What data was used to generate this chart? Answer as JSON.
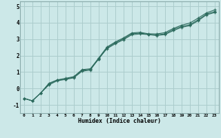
{
  "xlabel": "Humidex (Indice chaleur)",
  "background_color": "#cce8e8",
  "line_color": "#2d6b5e",
  "grid_color": "#aacccc",
  "xlim": [
    -0.5,
    23.5
  ],
  "ylim": [
    -1.5,
    5.3
  ],
  "xticks": [
    0,
    1,
    2,
    3,
    4,
    5,
    6,
    7,
    8,
    9,
    10,
    11,
    12,
    13,
    14,
    15,
    16,
    17,
    18,
    19,
    20,
    21,
    22,
    23
  ],
  "yticks": [
    -1,
    0,
    1,
    2,
    3,
    4,
    5
  ],
  "line1_x": [
    0,
    1,
    2,
    3,
    4,
    5,
    6,
    7,
    8,
    9,
    10,
    11,
    12,
    13,
    14,
    15,
    16,
    17,
    18,
    19,
    20,
    21,
    22,
    23
  ],
  "line1_y": [
    -0.6,
    -0.75,
    -0.28,
    0.22,
    0.47,
    0.55,
    0.65,
    1.05,
    1.12,
    1.82,
    2.42,
    2.72,
    2.97,
    3.27,
    3.32,
    3.28,
    3.22,
    3.28,
    3.52,
    3.72,
    3.82,
    4.12,
    4.48,
    4.62
  ],
  "line2_x": [
    0,
    1,
    2,
    3,
    4,
    5,
    6,
    7,
    8,
    9,
    10,
    11,
    12,
    13,
    14,
    15,
    16,
    17,
    18,
    19,
    20,
    21,
    22,
    23
  ],
  "line2_y": [
    -0.6,
    -0.75,
    -0.28,
    0.27,
    0.52,
    0.57,
    0.7,
    1.1,
    1.17,
    1.78,
    2.47,
    2.78,
    3.02,
    3.33,
    3.37,
    3.3,
    3.27,
    3.33,
    3.58,
    3.78,
    3.88,
    4.18,
    4.53,
    4.68
  ],
  "line3_x": [
    0,
    1,
    2,
    3,
    4,
    5,
    6,
    7,
    8,
    9,
    10,
    11,
    12,
    13,
    14,
    15,
    16,
    17,
    18,
    19,
    20,
    21,
    22,
    23
  ],
  "line3_y": [
    -0.6,
    -0.75,
    -0.28,
    0.32,
    0.52,
    0.62,
    0.72,
    1.15,
    1.2,
    1.85,
    2.52,
    2.83,
    3.08,
    3.38,
    3.42,
    3.33,
    3.32,
    3.4,
    3.65,
    3.85,
    3.98,
    4.28,
    4.6,
    4.78
  ]
}
